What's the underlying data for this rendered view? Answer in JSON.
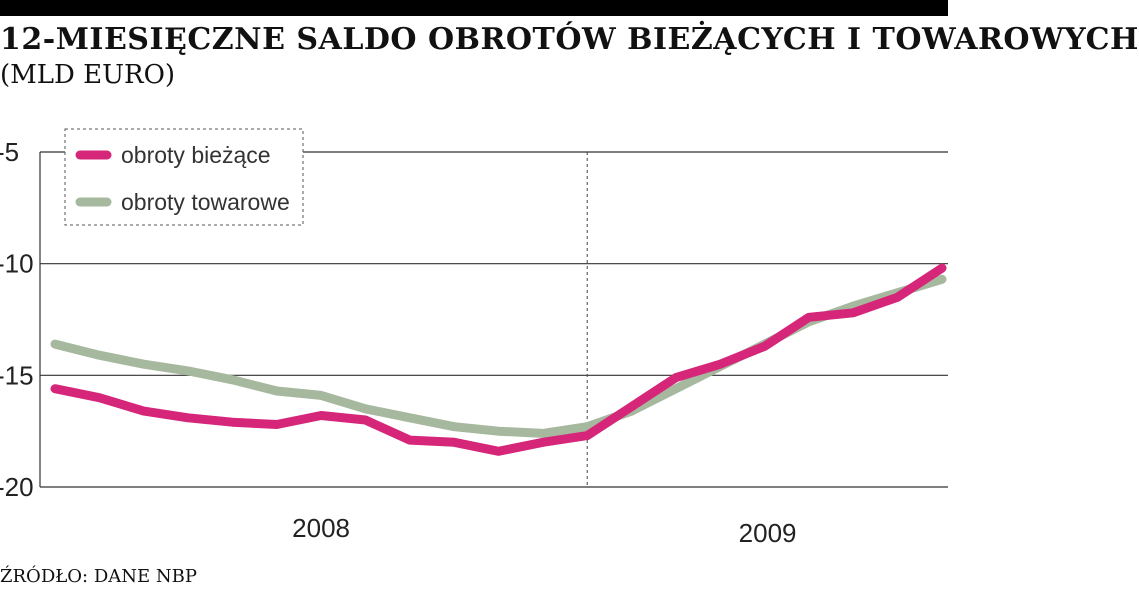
{
  "title": "12-MIESIĘCZNE SALDO OBROTÓW BIEŻĄCYCH I TOWAROWYCH",
  "subtitle": "(MLD EURO)",
  "source": "ŹRÓDŁO: DANE NBP",
  "chart_data": {
    "type": "line",
    "title": "12-MIESIĘCZNE SALDO OBROTÓW BIEŻĄCYCH I TOWAROWYCH",
    "ylabel": "(MLD EURO)",
    "xlabel": "",
    "ylim": [
      -20,
      -5
    ],
    "yticks": [
      -5,
      -10,
      -15,
      -20
    ],
    "ytick_labels": [
      "-5",
      "-10",
      "-15",
      "-20"
    ],
    "x_groups": [
      {
        "label": "2008",
        "start": 0,
        "end": 12
      },
      {
        "label": "2009",
        "start": 12,
        "end": 20
      }
    ],
    "divider_at": 12,
    "grid": true,
    "legend": {
      "placement": "top-left",
      "border": "dashed"
    },
    "x": [
      0,
      1,
      2,
      3,
      4,
      5,
      6,
      7,
      8,
      9,
      10,
      11,
      12,
      13,
      14,
      15,
      16,
      17,
      18,
      19,
      20
    ],
    "series": [
      {
        "name": "obroty bieżące",
        "color": "#d6267a",
        "values": [
          -15.6,
          -16.0,
          -16.6,
          -16.9,
          -17.1,
          -17.2,
          -16.8,
          -17.0,
          -17.9,
          -18.0,
          -18.4,
          -18.0,
          -17.7,
          -16.4,
          -15.1,
          -14.5,
          -13.7,
          -12.4,
          -12.2,
          -11.5,
          -10.2
        ]
      },
      {
        "name": "obroty towarowe",
        "color": "#a6b89e",
        "values": [
          -13.6,
          -14.1,
          -14.5,
          -14.8,
          -15.2,
          -15.7,
          -15.9,
          -16.5,
          -16.9,
          -17.3,
          -17.5,
          -17.6,
          -17.3,
          -16.6,
          -15.6,
          -14.6,
          -13.6,
          -12.6,
          -11.9,
          -11.3,
          -10.7
        ]
      }
    ]
  }
}
